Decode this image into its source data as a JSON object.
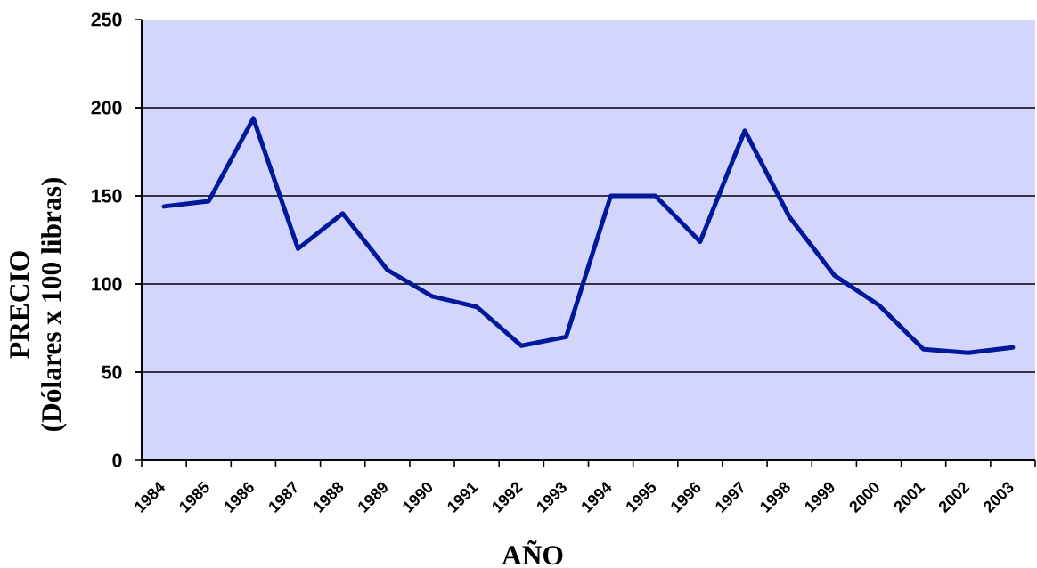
{
  "chart_data": {
    "type": "line",
    "xlabel": "AÑO",
    "ylabel": "PRECIO (Dólares x 100 libras)",
    "categories": [
      "1984",
      "1985",
      "1986",
      "1987",
      "1988",
      "1989",
      "1990",
      "1991",
      "1992",
      "1993",
      "1994",
      "1995",
      "1996",
      "1997",
      "1998",
      "1999",
      "2000",
      "2001",
      "2002",
      "2003"
    ],
    "values": [
      144,
      147,
      194,
      120,
      140,
      108,
      93,
      87,
      65,
      70,
      150,
      150,
      124,
      187,
      138,
      105,
      88,
      63,
      61,
      64
    ],
    "color": "#00189a",
    "ylim": [
      0,
      250
    ],
    "yticks": [
      0,
      50,
      100,
      150,
      200,
      250
    ],
    "grid": "y",
    "marker": "none",
    "line_style": "solid"
  }
}
